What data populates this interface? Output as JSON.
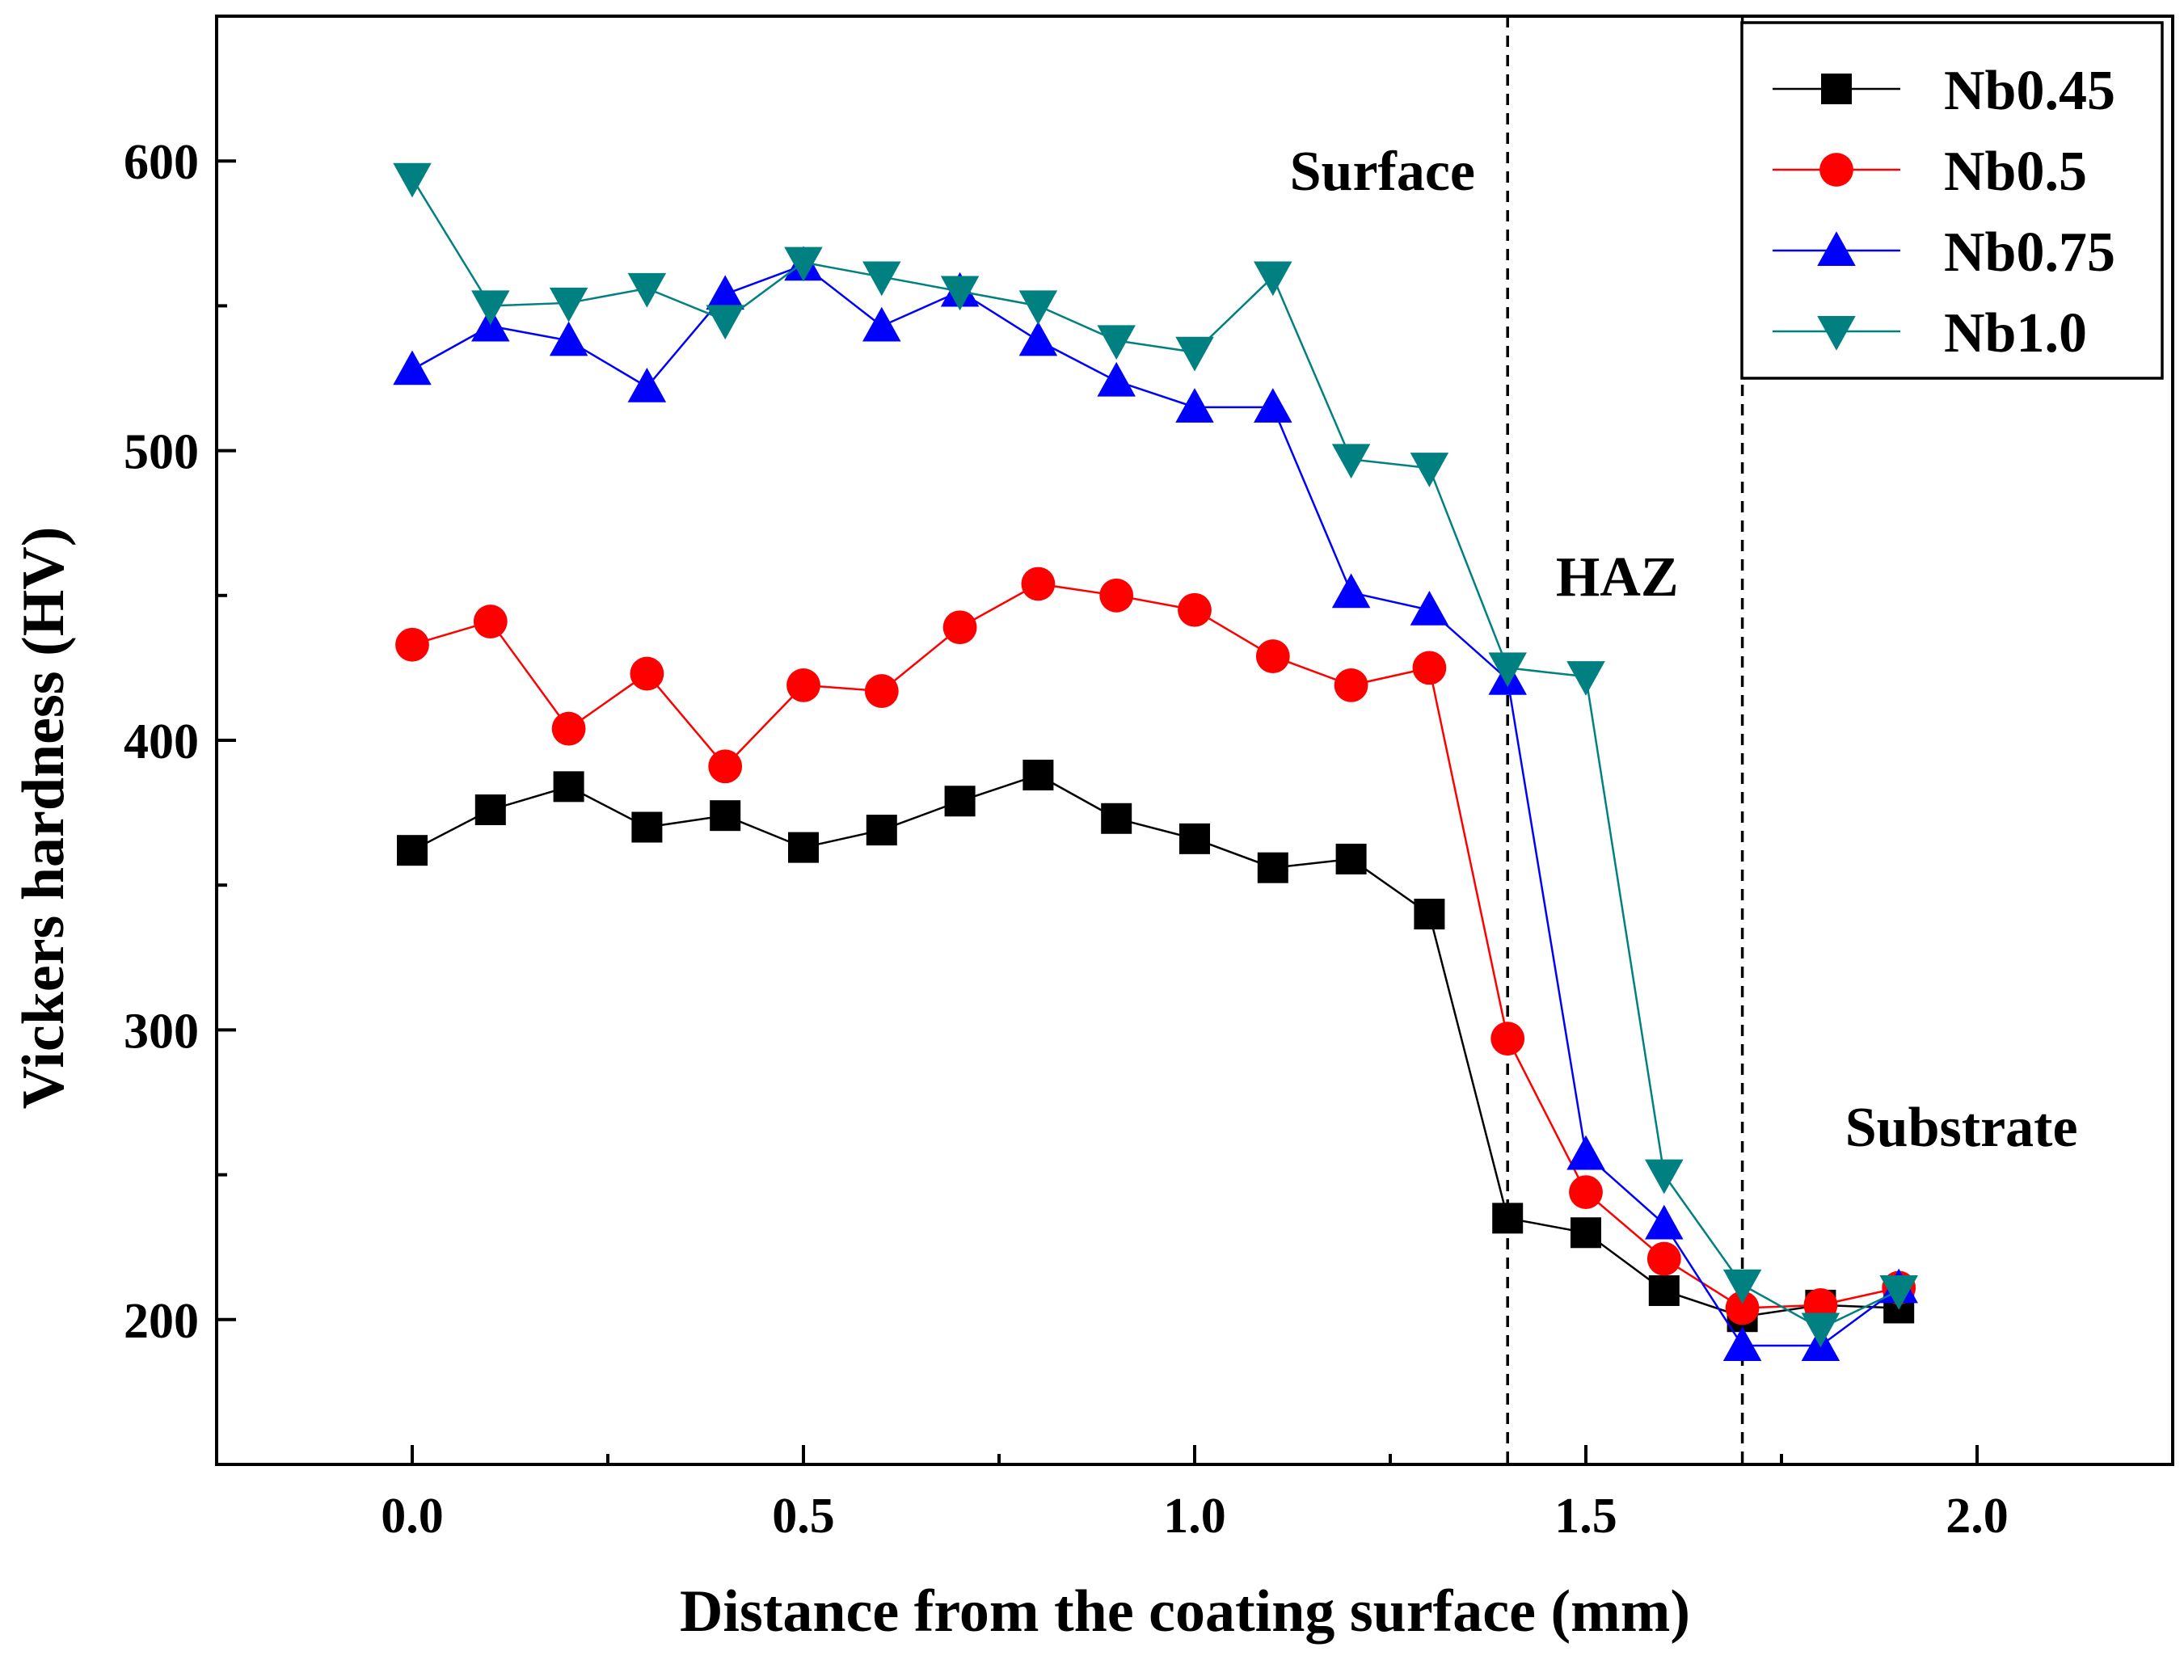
{
  "chart_data": {
    "type": "line",
    "title": "",
    "xlabel": "Distance from the coating surface (mm)",
    "ylabel": "Vickers hardness (HV)",
    "xlim": [
      -0.25,
      2.25
    ],
    "ylim": [
      150,
      650
    ],
    "x_ticks": [
      {
        "value": 0.0,
        "label": "0.0"
      },
      {
        "value": 0.5,
        "label": "0.5"
      },
      {
        "value": 1.0,
        "label": "1.0"
      },
      {
        "value": 1.5,
        "label": "1.5"
      },
      {
        "value": 2.0,
        "label": "2.0"
      }
    ],
    "x_minor_ticks": [
      0.25,
      0.75,
      1.25,
      1.75
    ],
    "y_ticks": [
      {
        "value": 200,
        "label": "200"
      },
      {
        "value": 300,
        "label": "300"
      },
      {
        "value": 400,
        "label": "400"
      },
      {
        "value": 500,
        "label": "500"
      },
      {
        "value": 600,
        "label": "600"
      }
    ],
    "y_minor_ticks": [
      250,
      350,
      450,
      550
    ],
    "grid": false,
    "legend_position": "top-right",
    "x": [
      0.0,
      0.1,
      0.2,
      0.3,
      0.4,
      0.5,
      0.6,
      0.7,
      0.8,
      0.9,
      1.0,
      1.1,
      1.2,
      1.3,
      1.4,
      1.5,
      1.6,
      1.7,
      1.8,
      1.9
    ],
    "series": [
      {
        "name": "Nb0.45",
        "color": "#000000",
        "marker": "square",
        "values": [
          362,
          376,
          384,
          370,
          374,
          363,
          369,
          379,
          388,
          373,
          366,
          356,
          359,
          340,
          235,
          230,
          210,
          201,
          205,
          204
        ]
      },
      {
        "name": "Nb0.5",
        "color": "#ff0000",
        "marker": "circle",
        "values": [
          433,
          441,
          404,
          423,
          391,
          419,
          417,
          439,
          454,
          450,
          445,
          429,
          419,
          425,
          297,
          244,
          221,
          204,
          205,
          211
        ]
      },
      {
        "name": "Nb0.75",
        "color": "#0000ff",
        "marker": "triangle-up",
        "values": [
          528,
          543,
          538,
          522,
          554,
          564,
          543,
          555,
          538,
          524,
          515,
          515,
          451,
          445,
          421,
          257,
          233,
          191,
          191,
          211
        ]
      },
      {
        "name": "Nb1.0",
        "color": "#008080",
        "marker": "triangle-down",
        "values": [
          594,
          550,
          551,
          556,
          545,
          565,
          560,
          555,
          550,
          538,
          534,
          560,
          497,
          494,
          425,
          422,
          250,
          212,
          197,
          210
        ]
      }
    ],
    "reference_lines": [
      {
        "axis": "x",
        "value": 1.4,
        "style": "dashed"
      },
      {
        "axis": "x",
        "value": 1.7,
        "style": "dashed"
      }
    ],
    "annotations": [
      {
        "text": "Surface",
        "x": 1.24,
        "y": 590
      },
      {
        "text": "HAZ",
        "x": 1.54,
        "y": 450
      },
      {
        "text": "Substrate",
        "x": 1.98,
        "y": 260
      }
    ]
  }
}
